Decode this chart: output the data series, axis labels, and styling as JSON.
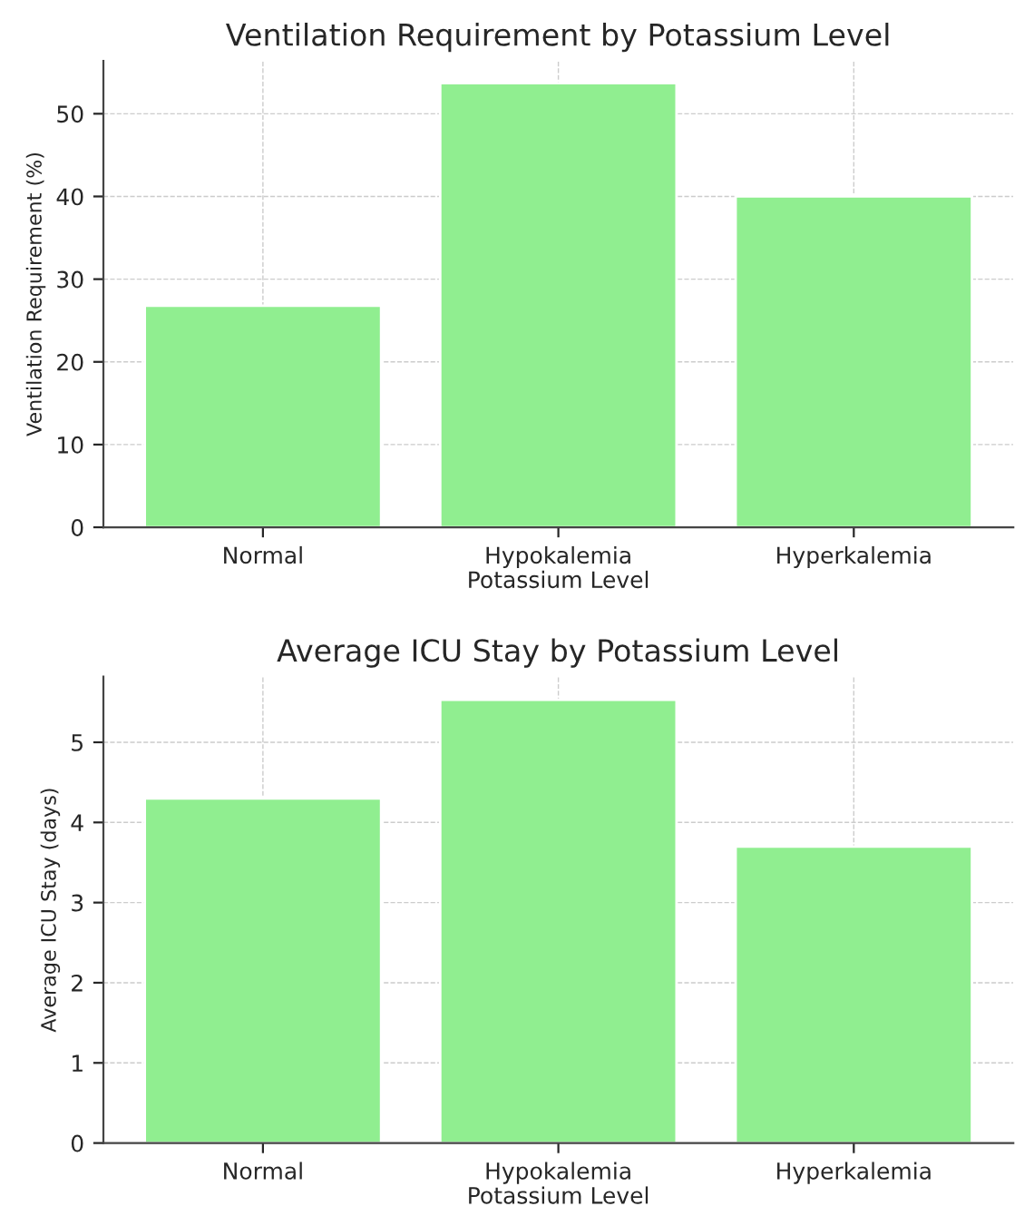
{
  "chart_data": [
    {
      "type": "bar",
      "title": "Ventilation Requirement by Potassium Level",
      "xlabel": "Potassium Level",
      "ylabel": "Ventilation Requirement (%)",
      "categories": [
        "Normal",
        "Hypokalemia",
        "Hyperkalemia"
      ],
      "values": [
        26.8,
        53.7,
        40
      ],
      "color": "#90ee90",
      "ylim": [
        0,
        56.4
      ],
      "yticks": [
        0,
        10,
        20,
        30,
        40,
        50
      ],
      "grid": true
    },
    {
      "type": "bar",
      "title": "Average ICU Stay by Potassium Level",
      "xlabel": "Potassium Level",
      "ylabel": "Average ICU Stay (days)",
      "categories": [
        "Normal",
        "Hypokalemia",
        "Hyperkalemia"
      ],
      "values": [
        4.3,
        5.53,
        3.7
      ],
      "color": "#90ee90",
      "ylim": [
        0,
        5.82
      ],
      "yticks": [
        0,
        1,
        2,
        3,
        4,
        5
      ],
      "grid": true
    }
  ]
}
